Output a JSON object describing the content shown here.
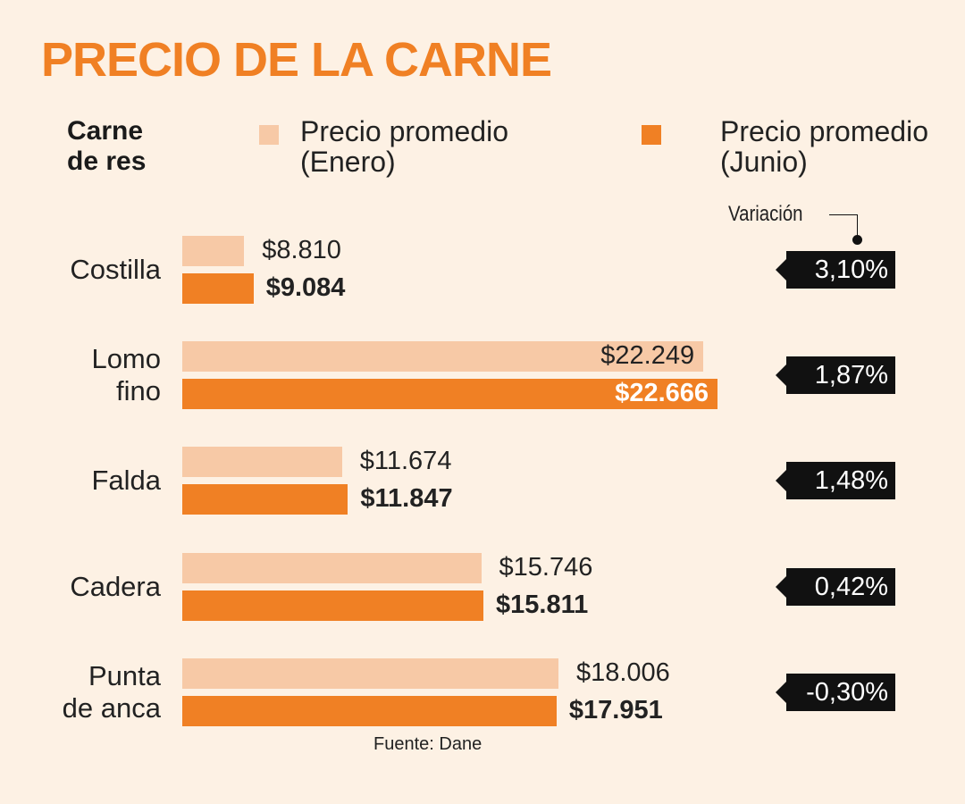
{
  "chart_data": {
    "type": "bar",
    "orientation": "horizontal",
    "title": "PRECIO DE LA CARNE",
    "category_header": "Carne\nde res",
    "categories": [
      "Costilla",
      "Lomo\nfino",
      "Falda",
      "Cadera",
      "Punta\nde anca"
    ],
    "series": [
      {
        "name": "Precio promedio\n(Enero)",
        "color": "#f7c9a6",
        "values": [
          8810,
          22249,
          11674,
          15746,
          18006
        ],
        "value_labels": [
          "$8.810",
          "$22.249",
          "$11.674",
          "$15.746",
          "$18.006"
        ]
      },
      {
        "name": "Precio promedio\n(Junio)",
        "color": "#f08024",
        "values": [
          9084,
          22666,
          11847,
          15811,
          17951
        ],
        "value_labels": [
          "$9.084",
          "$22.666",
          "$11.847",
          "$15.811",
          "$17.951"
        ]
      }
    ],
    "variation": {
      "label": "Variación",
      "values": [
        3.1,
        1.87,
        1.48,
        0.42,
        -0.3
      ],
      "value_labels": [
        "3,10%",
        "1,87%",
        "1,48%",
        "0,42%",
        "-0,30%"
      ]
    },
    "xlim": [
      7000,
      23000
    ],
    "source": "Fuente: Dane"
  }
}
